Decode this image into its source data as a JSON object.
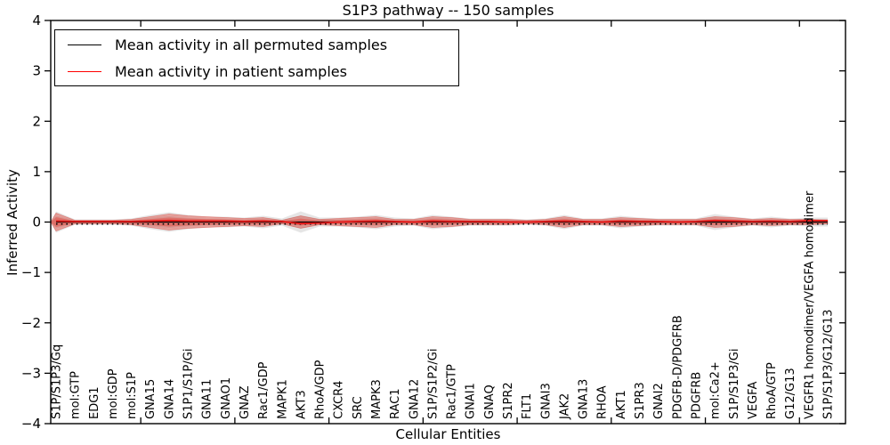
{
  "chart_data": {
    "type": "area",
    "title": "S1P3 pathway -- 150 samples",
    "xlabel": "Cellular Entities",
    "ylabel": "Inferred Activity",
    "ylim": [
      -4,
      4
    ],
    "yticks": [
      4,
      3,
      2,
      1,
      0,
      -1,
      -2,
      -3,
      -4
    ],
    "grid": false,
    "legend_position": "upper left",
    "categories": [
      "S1P/S1P3/Gq",
      "mol:GTP",
      "EDG1",
      "mol:GDP",
      "mol:S1P",
      "GNA15",
      "GNA14",
      "S1P1/S1P/Gi",
      "GNA11",
      "GNAO1",
      "GNAZ",
      "Rac1/GDP",
      "MAPK1",
      "AKT3",
      "RhoA/GDP",
      "CXCR4",
      "SRC",
      "MAPK3",
      "RAC1",
      "GNA12",
      "S1P/S1P2/Gi",
      "Rac1/GTP",
      "GNAI1",
      "GNAQ",
      "S1PR2",
      "FLT1",
      "GNAI3",
      "JAK2",
      "GNA13",
      "RHOA",
      "AKT1",
      "S1PR3",
      "GNAI2",
      "PDGFB-D/PDGFRB",
      "PDGFRB",
      "mol:Ca2+",
      "S1P/S1P3/Gi",
      "VEGFA",
      "RhoA/GTP",
      "G12/G13",
      "VEGFR1 homodimer/VEGFA homodimer",
      "S1P/S1P3/G12/G13"
    ],
    "series": [
      {
        "name": "Mean activity in all permuted samples",
        "line_color": "#000000",
        "band_color": "#b0b0b0",
        "mean_values": [
          0,
          0,
          0,
          0,
          0,
          0,
          0,
          0,
          0,
          0,
          0,
          0,
          0,
          0,
          0,
          0,
          0,
          0,
          0,
          0,
          0,
          0,
          0,
          0,
          0,
          0,
          0,
          0,
          0,
          0,
          0,
          0,
          0,
          0,
          0,
          0,
          0,
          0,
          0,
          0,
          0,
          0
        ],
        "band_halfwidth": [
          0.212,
          0.053,
          0.053,
          0.053,
          0.071,
          0.141,
          0.194,
          0.141,
          0.106,
          0.106,
          0.088,
          0.124,
          0.071,
          0.212,
          0.088,
          0.088,
          0.106,
          0.141,
          0.088,
          0.071,
          0.141,
          0.106,
          0.071,
          0.071,
          0.071,
          0.053,
          0.071,
          0.141,
          0.071,
          0.071,
          0.124,
          0.088,
          0.071,
          0.071,
          0.071,
          0.159,
          0.106,
          0.071,
          0.106,
          0.071,
          0.088,
          0.088
        ]
      },
      {
        "name": "Mean activity in patient samples",
        "line_color": "#e51717",
        "band_color": "#e63c32",
        "mean_values": [
          0.02,
          0.01,
          0.01,
          0.01,
          0.01,
          0.02,
          0.03,
          0.02,
          0.02,
          0.02,
          0.01,
          0.02,
          0.01,
          -0.03,
          -0.02,
          0,
          0.01,
          0.02,
          0.01,
          0,
          0.02,
          0.01,
          0.01,
          0.01,
          0,
          0,
          0.01,
          0.02,
          0.01,
          0,
          0.02,
          0.01,
          0.01,
          0,
          0.01,
          0.03,
          0.02,
          0.01,
          0.02,
          0.01,
          0.03,
          0.03
        ],
        "band_halfwidth": [
          0.177,
          0.035,
          0.035,
          0.035,
          0.053,
          0.106,
          0.159,
          0.124,
          0.106,
          0.088,
          0.071,
          0.088,
          0.035,
          0.124,
          0.053,
          0.071,
          0.088,
          0.106,
          0.053,
          0.053,
          0.106,
          0.088,
          0.053,
          0.053,
          0.053,
          0.035,
          0.053,
          0.106,
          0.053,
          0.053,
          0.088,
          0.071,
          0.053,
          0.053,
          0.053,
          0.106,
          0.088,
          0.053,
          0.071,
          0.053,
          0.053,
          0.035
        ]
      }
    ],
    "colors": {
      "frame": "#000000",
      "permuted_mean_line": "#000000",
      "patient_mean_line": "#e51717",
      "permuted_band": "#b0b0b0",
      "patient_band": "#e63c32",
      "background": "#ffffff"
    }
  },
  "legend": {
    "items": [
      {
        "label": "Mean activity in all permuted samples",
        "color": "#000000"
      },
      {
        "label": "Mean activity in patient samples",
        "color": "#ff0000"
      }
    ]
  }
}
